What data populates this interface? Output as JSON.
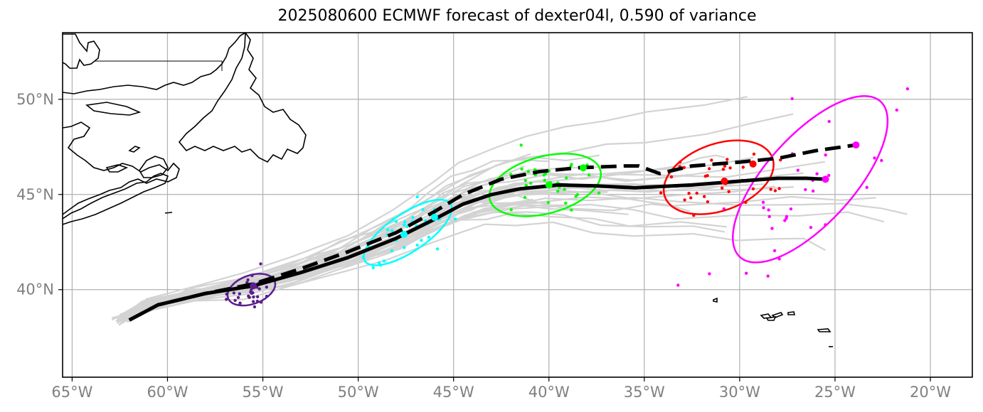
{
  "title": "2025080600 ECMWF forecast of dexter04l, 0.590 of variance",
  "map": {
    "lon_range": [
      -65.5,
      -17.8
    ],
    "lat_range": [
      35.4,
      53.5
    ],
    "x_ticks": [
      {
        "lon": -65,
        "label": "65°W"
      },
      {
        "lon": -60,
        "label": "60°W"
      },
      {
        "lon": -55,
        "label": "55°W"
      },
      {
        "lon": -50,
        "label": "50°W"
      },
      {
        "lon": -45,
        "label": "45°W"
      },
      {
        "lon": -40,
        "label": "40°W"
      },
      {
        "lon": -35,
        "label": "35°W"
      },
      {
        "lon": -30,
        "label": "30°W"
      },
      {
        "lon": -25,
        "label": "25°W"
      },
      {
        "lon": -20,
        "label": "20°W"
      }
    ],
    "y_ticks": [
      {
        "lat": 40,
        "label": "40°N"
      },
      {
        "lat": 45,
        "label": "45°N"
      },
      {
        "lat": 50,
        "label": "50°N"
      }
    ],
    "grid": true
  },
  "tracks": {
    "mean_track": [
      [
        -62.0,
        38.4
      ],
      [
        -60.5,
        39.2
      ],
      [
        -58.0,
        39.8
      ],
      [
        -55.5,
        40.2
      ],
      [
        -53.0,
        40.9
      ],
      [
        -50.5,
        41.7
      ],
      [
        -48.0,
        42.7
      ],
      [
        -46.0,
        43.7
      ],
      [
        -44.5,
        44.5
      ],
      [
        -43.0,
        45.0
      ],
      [
        -41.5,
        45.3
      ],
      [
        -39.5,
        45.5
      ],
      [
        -37.5,
        45.45
      ],
      [
        -35.5,
        45.35
      ],
      [
        -32.5,
        45.5
      ],
      [
        -30.0,
        45.7
      ],
      [
        -28.0,
        45.85
      ],
      [
        -26.5,
        45.85
      ],
      [
        -25.5,
        45.8
      ]
    ],
    "dashed_track": [
      [
        -62.0,
        38.4
      ],
      [
        -60.5,
        39.2
      ],
      [
        -58.0,
        39.8
      ],
      [
        -55.5,
        40.3
      ],
      [
        -53.0,
        41.1
      ],
      [
        -50.5,
        42.0
      ],
      [
        -48.0,
        43.0
      ],
      [
        -46.0,
        44.1
      ],
      [
        -44.5,
        45.0
      ],
      [
        -42.5,
        45.8
      ],
      [
        -40.5,
        46.2
      ],
      [
        -38.5,
        46.4
      ],
      [
        -36.0,
        46.5
      ],
      [
        -35.3,
        46.5
      ],
      [
        -34.2,
        46.1
      ],
      [
        -32.5,
        46.5
      ],
      [
        -30.0,
        46.7
      ],
      [
        -28.0,
        46.9
      ],
      [
        -26.0,
        47.3
      ],
      [
        -23.9,
        47.6
      ]
    ],
    "ensemble_member_count": 40
  },
  "forecast_clusters": [
    {
      "color": "#5b1f8c",
      "center": [
        -55.6,
        40.0
      ],
      "rx_deg": 1.3,
      "ry_deg": 0.75,
      "rotation": -20,
      "solid_point": [
        -55.5,
        40.2
      ]
    },
    {
      "color": "#00ffff",
      "center": [
        -47.4,
        43.0
      ],
      "rx_deg": 2.7,
      "ry_deg": 1.0,
      "rotation": -34,
      "solid_point": [
        -47.6,
        42.9
      ],
      "dashed_point": [
        -46.0,
        43.8
      ]
    },
    {
      "color": "#00ff00",
      "center": [
        -40.2,
        45.5
      ],
      "rx_deg": 3.0,
      "ry_deg": 1.5,
      "rotation": -15,
      "solid_point": [
        -40.0,
        45.5
      ],
      "dashed_point": [
        -38.2,
        46.4
      ]
    },
    {
      "color": "#ff0000",
      "center": [
        -31.1,
        45.9
      ],
      "rx_deg": 3.0,
      "ry_deg": 1.75,
      "rotation": -20,
      "solid_point": [
        -30.8,
        45.7
      ],
      "dashed_point": [
        -29.3,
        46.6
      ]
    },
    {
      "color": "#ff00ff",
      "center": [
        -26.3,
        45.8
      ],
      "rx_deg": 5.5,
      "ry_deg": 2.3,
      "rotation": -48,
      "solid_point": [
        -25.5,
        45.8
      ],
      "dashed_point": [
        -23.9,
        47.6
      ]
    }
  ],
  "colors": {
    "mean_track": "#000000",
    "ensemble": "#d3d3d3",
    "grid": "#b0b0b0",
    "coastline": "#000000",
    "tick_label": "#808080"
  }
}
